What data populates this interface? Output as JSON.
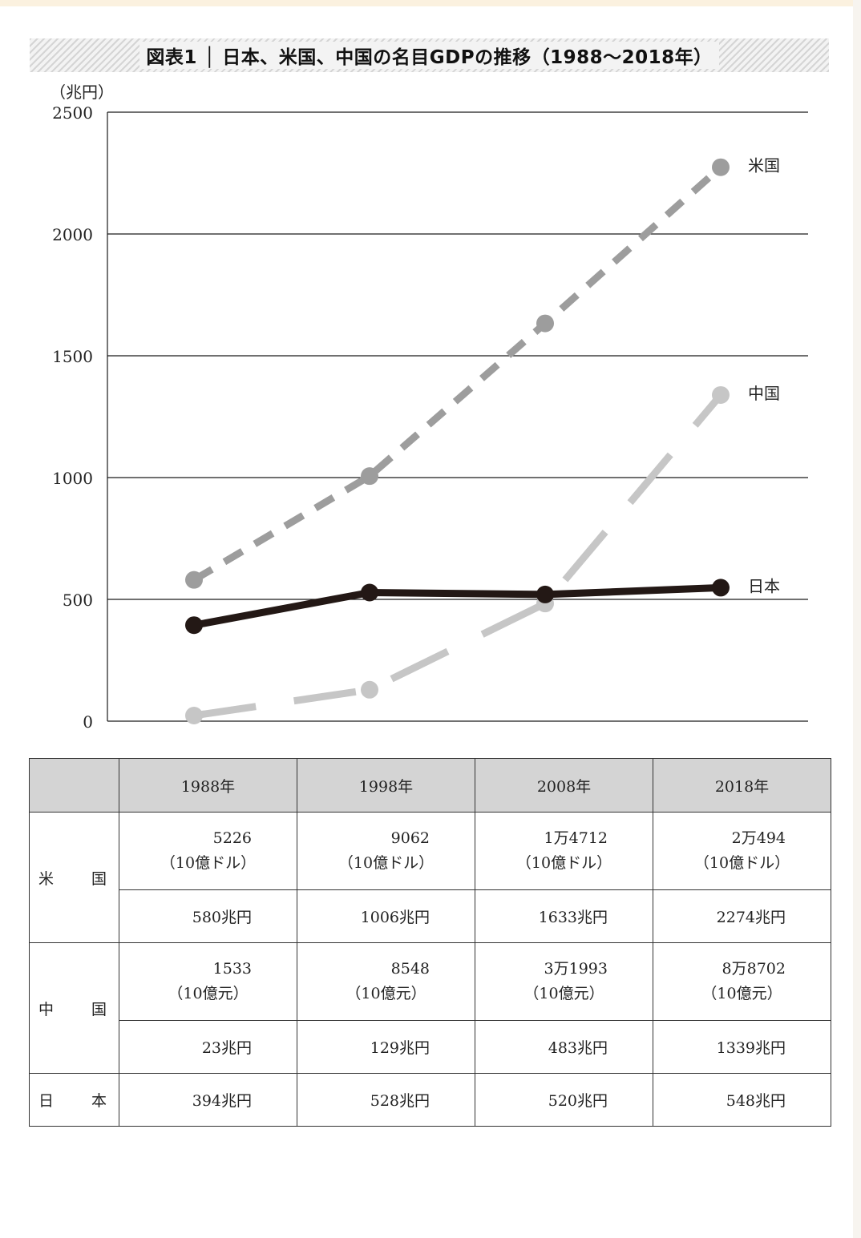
{
  "title": "図表1 │ 日本、米国、中国の名目GDPの推移（1988〜2018年）",
  "chart_data": {
    "type": "line",
    "ylabel": "（兆円）",
    "ylim": [
      0,
      2500
    ],
    "yticks": [
      "0",
      "500",
      "1000",
      "1500",
      "2000",
      "2500"
    ],
    "categories": [
      "1988年",
      "1998年",
      "2008年",
      "2018年"
    ],
    "grid": true,
    "series": [
      {
        "name": "米国",
        "values": [
          580,
          1006,
          1633,
          2274
        ],
        "color": "#9d9d9d",
        "dash": "long-dash"
      },
      {
        "name": "中国",
        "values": [
          23,
          129,
          483,
          1339
        ],
        "color": "#c6c6c6",
        "dash": "extra-long-dash"
      },
      {
        "name": "日本",
        "values": [
          394,
          528,
          520,
          548
        ],
        "color": "#231815",
        "dash": "solid"
      }
    ]
  },
  "table": {
    "headers": [
      "",
      "1988年",
      "1998年",
      "2008年",
      "2018年"
    ],
    "us": {
      "label": "米　国",
      "native": [
        "5226",
        "9062",
        "1万4712",
        "2万494"
      ],
      "native_unit": "（10億ドル）",
      "yen": [
        "580兆円",
        "1006兆円",
        "1633兆円",
        "2274兆円"
      ]
    },
    "cn": {
      "label": "中　国",
      "native": [
        "1533",
        "8548",
        "3万1993",
        "8万8702"
      ],
      "native_unit": "（10億元）",
      "yen": [
        "23兆円",
        "129兆円",
        "483兆円",
        "1339兆円"
      ]
    },
    "jp": {
      "label": "日　本",
      "yen": [
        "394兆円",
        "528兆円",
        "520兆円",
        "548兆円"
      ]
    }
  }
}
